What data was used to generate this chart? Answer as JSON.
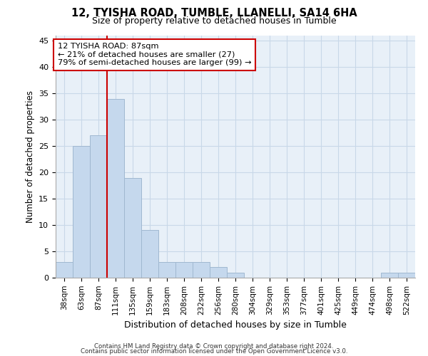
{
  "title_line1": "12, TYISHA ROAD, TUMBLE, LLANELLI, SA14 6HA",
  "title_line2": "Size of property relative to detached houses in Tumble",
  "xlabel": "Distribution of detached houses by size in Tumble",
  "ylabel": "Number of detached properties",
  "categories": [
    "38sqm",
    "63sqm",
    "87sqm",
    "111sqm",
    "135sqm",
    "159sqm",
    "183sqm",
    "208sqm",
    "232sqm",
    "256sqm",
    "280sqm",
    "304sqm",
    "329sqm",
    "353sqm",
    "377sqm",
    "401sqm",
    "425sqm",
    "449sqm",
    "474sqm",
    "498sqm",
    "522sqm"
  ],
  "values": [
    3,
    25,
    27,
    34,
    19,
    9,
    3,
    3,
    3,
    2,
    1,
    0,
    0,
    0,
    0,
    0,
    0,
    0,
    0,
    1,
    1
  ],
  "bar_color": "#c5d8ed",
  "bar_edge_color": "#a0b8d0",
  "vline_index": 2,
  "vline_color": "#cc0000",
  "annotation_text": "12 TYISHA ROAD: 87sqm\n← 21% of detached houses are smaller (27)\n79% of semi-detached houses are larger (99) →",
  "annotation_box_color": "#ffffff",
  "annotation_box_edge_color": "#cc0000",
  "ylim": [
    0,
    46
  ],
  "yticks": [
    0,
    5,
    10,
    15,
    20,
    25,
    30,
    35,
    40,
    45
  ],
  "grid_color": "#c8d8e8",
  "bg_color": "#e8f0f8",
  "footer_line1": "Contains HM Land Registry data © Crown copyright and database right 2024.",
  "footer_line2": "Contains public sector information licensed under the Open Government Licence v3.0."
}
